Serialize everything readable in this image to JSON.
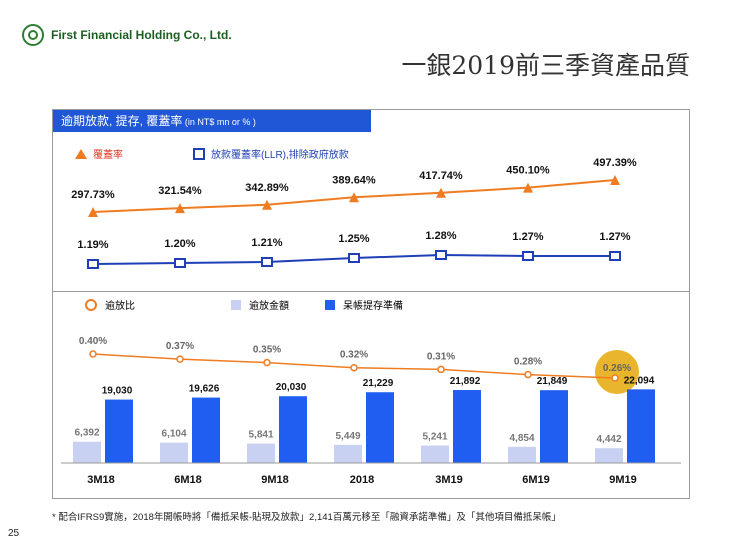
{
  "company": "First Financial Holding Co., Ltd.",
  "title": "一銀2019前三季資產品質",
  "panel_header": "逾期放款, 提存, 覆蓋率",
  "panel_header_unit": " (in NT$ mn or % )",
  "legend": {
    "coverage": "覆蓋率",
    "llr": "放款覆蓋率(LLR),排除政府放款",
    "npl_ratio": "逾放比",
    "npl_amount": "逾放金額",
    "provision": "呆帳提存準備"
  },
  "footnote": "* 配合IFRS9實施，2018年開帳時將「備抵呆帳-貼現及放款」2,141百萬元移至「融資承諾準備」及「其他項目備抵呆帳」",
  "page_number": "25",
  "colors": {
    "accent_blue": "#1f57d6",
    "orange": "#f07c22",
    "navy": "#1f3fb6",
    "bar_light": "#c9d1f2",
    "bar_dark": "#1f5ef0",
    "highlight": "#e8b52d"
  },
  "chart_data": {
    "type": "combo",
    "categories": [
      "3M18",
      "6M18",
      "9M18",
      "2018",
      "3M19",
      "6M19",
      "9M19"
    ],
    "series": [
      {
        "name": "覆蓋率",
        "kind": "line",
        "unit": "%",
        "values": [
          297.73,
          321.54,
          342.89,
          389.64,
          417.74,
          450.1,
          497.39
        ],
        "labels": [
          "297.73%",
          "321.54%",
          "342.89%",
          "389.64%",
          "417.74%",
          "450.10%",
          "497.39%"
        ]
      },
      {
        "name": "放款覆蓋率(LLR),排除政府放款",
        "kind": "line",
        "unit": "%",
        "values": [
          1.19,
          1.2,
          1.21,
          1.25,
          1.28,
          1.27,
          1.27
        ],
        "labels": [
          "1.19%",
          "1.20%",
          "1.21%",
          "1.25%",
          "1.28%",
          "1.27%",
          "1.27%"
        ]
      },
      {
        "name": "逾放比",
        "kind": "line",
        "unit": "%",
        "values": [
          0.4,
          0.37,
          0.35,
          0.32,
          0.31,
          0.28,
          0.26
        ],
        "labels": [
          "0.40%",
          "0.37%",
          "0.35%",
          "0.32%",
          "0.31%",
          "0.28%",
          "0.26%"
        ]
      },
      {
        "name": "逾放金額",
        "kind": "bar",
        "unit": "NT$ mn",
        "values": [
          6392,
          6104,
          5841,
          5449,
          5241,
          4854,
          4442
        ],
        "labels": [
          "6,392",
          "6,104",
          "5,841",
          "5,449",
          "5,241",
          "4,854",
          "4,442"
        ]
      },
      {
        "name": "呆帳提存準備",
        "kind": "bar",
        "unit": "NT$ mn",
        "values": [
          19030,
          19626,
          20030,
          21229,
          21892,
          21849,
          22094
        ],
        "labels": [
          "19,030",
          "19,626",
          "20,030",
          "21,229",
          "21,892",
          "21,849",
          "22,094"
        ]
      }
    ],
    "highlighted_category": "9M19"
  }
}
